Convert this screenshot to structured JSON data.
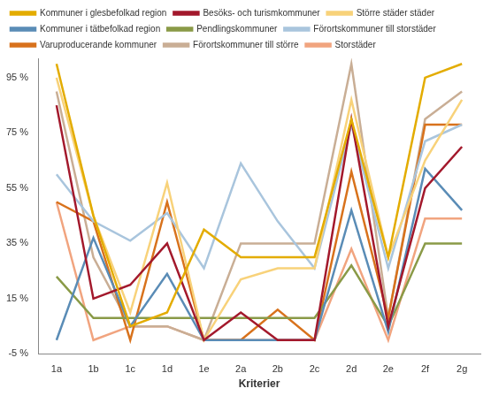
{
  "chart_data": {
    "type": "line",
    "x_label": "Kriterier",
    "categories": [
      "1a",
      "1b",
      "1c",
      "1d",
      "1e",
      "2a",
      "2b",
      "2c",
      "2d",
      "2e",
      "2f",
      "2g"
    ],
    "series": [
      {
        "name": "Kommuner i glesbefolkad region",
        "color": "#e3ac00",
        "values": [
          100,
          45,
          5,
          10,
          40,
          30,
          30,
          30,
          80,
          30,
          95,
          100
        ]
      },
      {
        "name": "Besöks- och turismkommuner",
        "color": "#a3192c",
        "values": [
          85,
          15,
          20,
          35,
          0,
          10,
          0,
          0,
          80,
          5,
          55,
          70
        ]
      },
      {
        "name": "Större städer städer",
        "color": "#f8d27a",
        "values": [
          95,
          45,
          10,
          57,
          0,
          22,
          26,
          26,
          87,
          30,
          65,
          87
        ]
      },
      {
        "name": "Kommuner i tätbefolkad region",
        "color": "#5a8cb6",
        "values": [
          0,
          37,
          5,
          24,
          0,
          0,
          0,
          0,
          47,
          3,
          62,
          47
        ]
      },
      {
        "name": "Pendlingskommuner",
        "color": "#8a9a47",
        "values": [
          23,
          8,
          8,
          8,
          8,
          8,
          8,
          8,
          27,
          5,
          35,
          35
        ]
      },
      {
        "name": "Förortskommuner till storstäder",
        "color": "#a9c5dd",
        "values": [
          60,
          43,
          36,
          46,
          26,
          64,
          43,
          26,
          78,
          26,
          72,
          78
        ]
      },
      {
        "name": "Varuproducerande kommuner",
        "color": "#d8721c",
        "values": [
          50,
          43,
          0,
          50,
          0,
          0,
          11,
          0,
          61,
          8,
          78,
          78
        ]
      },
      {
        "name": "Förortskommuner till större",
        "color": "#c9ae95",
        "values": [
          90,
          30,
          5,
          5,
          0,
          35,
          35,
          35,
          100,
          8,
          80,
          90
        ]
      },
      {
        "name": "Storstäder",
        "color": "#f1a47f",
        "values": [
          50,
          0,
          5,
          5,
          0,
          0,
          0,
          0,
          33,
          0,
          44,
          44
        ]
      }
    ],
    "ylim": [
      -5,
      102
    ],
    "yticks": [
      {
        "value": -5,
        "label": "-5 %"
      },
      {
        "value": 15,
        "label": "15 %"
      },
      {
        "value": 35,
        "label": "35 %"
      },
      {
        "value": 55,
        "label": "55 %"
      },
      {
        "value": 75,
        "label": "75 %"
      },
      {
        "value": 95,
        "label": "95 %"
      }
    ],
    "grid": false,
    "legend": "top"
  }
}
